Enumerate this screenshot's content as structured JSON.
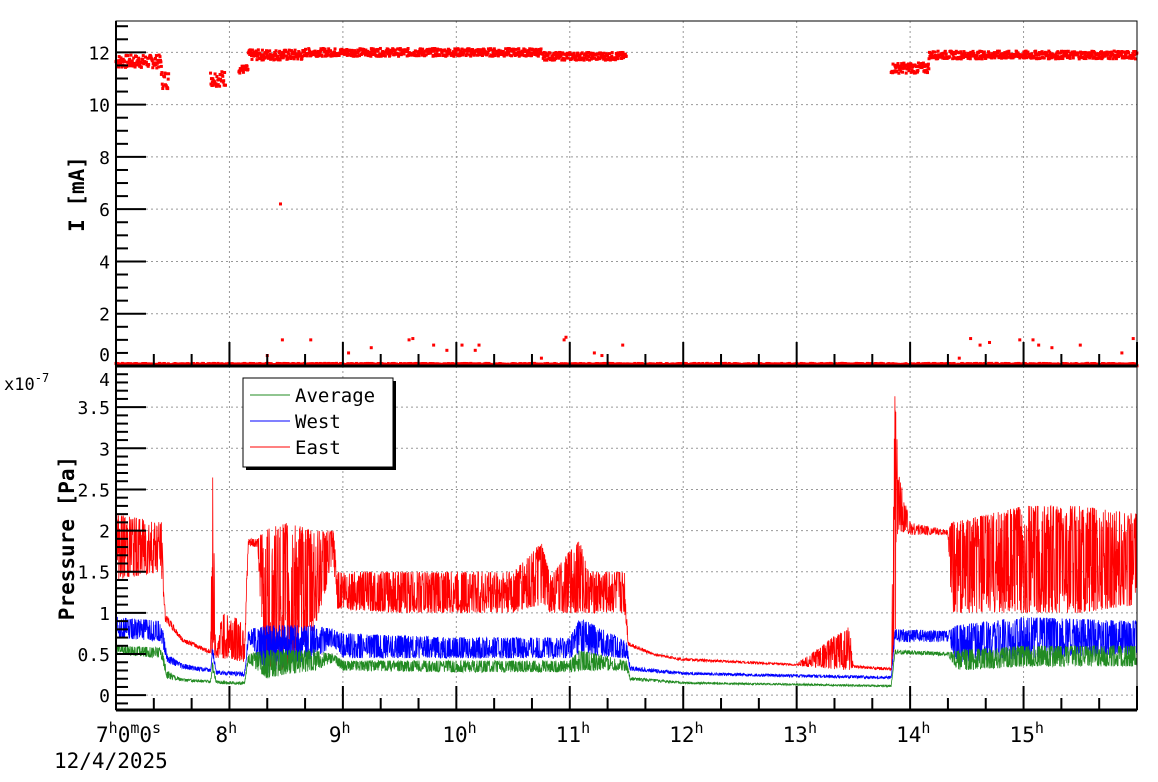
{
  "chart_data": [
    {
      "type": "scatter",
      "ylabel": "I [mA]",
      "ylim": [
        0,
        13.2
      ],
      "xlim": [
        "07:00",
        "16:00"
      ],
      "yticks": [
        "0",
        "2",
        "4",
        "6",
        "8",
        "10",
        "12"
      ],
      "grid": true,
      "color": "#ff0000",
      "segments": [
        {
          "from": "07:00",
          "to": "07:24",
          "lo": 11.4,
          "hi": 11.9
        },
        {
          "from": "07:24",
          "to": "07:28",
          "lo": 10.6,
          "hi": 11.3
        },
        {
          "from": "07:50",
          "to": "07:58",
          "lo": 10.7,
          "hi": 11.3
        },
        {
          "from": "08:05",
          "to": "08:10",
          "lo": 11.2,
          "hi": 11.5
        },
        {
          "from": "08:10",
          "to": "08:40",
          "lo": 11.7,
          "hi": 12.1
        },
        {
          "from": "08:40",
          "to": "10:45",
          "lo": 11.85,
          "hi": 12.15
        },
        {
          "from": "10:45",
          "to": "11:30",
          "lo": 11.7,
          "hi": 12.0
        },
        {
          "from": "13:50",
          "to": "14:10",
          "lo": 11.2,
          "hi": 11.6
        },
        {
          "from": "14:10",
          "to": "16:00",
          "lo": 11.75,
          "hi": 12.05
        },
        {
          "from": "07:00",
          "to": "16:00",
          "lo": 0.0,
          "hi": 0.1
        }
      ],
      "outliers": [
        [
          "08:27",
          6.2
        ],
        [
          "08:28",
          1.0
        ],
        [
          "08:20",
          0.4
        ],
        [
          "08:43",
          1.0
        ],
        [
          "09:03",
          0.5
        ],
        [
          "09:15",
          0.7
        ],
        [
          "09:35",
          1.0
        ],
        [
          "09:37",
          1.05
        ],
        [
          "09:48",
          0.8
        ],
        [
          "09:55",
          0.6
        ],
        [
          "10:03",
          0.8
        ],
        [
          "10:10",
          0.6
        ],
        [
          "10:12",
          0.8
        ],
        [
          "10:45",
          0.3
        ],
        [
          "10:57",
          1.0
        ],
        [
          "10:58",
          1.1
        ],
        [
          "11:13",
          0.5
        ],
        [
          "11:17",
          0.4
        ],
        [
          "11:28",
          0.8
        ],
        [
          "14:32",
          1.05
        ],
        [
          "14:37",
          0.8
        ],
        [
          "14:42",
          0.9
        ],
        [
          "14:58",
          1.0
        ],
        [
          "15:05",
          1.0
        ],
        [
          "15:08",
          0.8
        ],
        [
          "15:15",
          0.7
        ],
        [
          "15:30",
          0.8
        ],
        [
          "15:52",
          0.5
        ],
        [
          "15:58",
          1.05
        ],
        [
          "14:26",
          0.3
        ]
      ]
    },
    {
      "type": "line",
      "ylabel": "Pressure [Pa]",
      "yscale_label": "x10",
      "yscale_exp": "-7",
      "ylim": [
        -0.18,
        4.0
      ],
      "yticks": [
        "0",
        "0.5",
        "1",
        "1.5",
        "2",
        "2.5",
        "3",
        "3.5",
        "4"
      ],
      "xlim": [
        "07:00",
        "16:00"
      ],
      "xticks": [
        "7",
        "8",
        "9",
        "10",
        "11",
        "12",
        "13",
        "14",
        "15"
      ],
      "xtick_sup": "h",
      "first_tick": {
        "h": "7",
        "m": "0",
        "s": "0"
      },
      "date": "12/4/2025",
      "grid": true,
      "legend": "top-left",
      "series": [
        {
          "name": "Average",
          "color": "#228b22",
          "points": [
            [
              "07:00",
              0.5,
              0.6
            ],
            [
              "07:24",
              0.45,
              0.58
            ],
            [
              "07:27",
              0.2,
              0.3
            ],
            [
              "07:35",
              0.17,
              0.2
            ],
            [
              "07:50",
              0.15,
              0.18
            ],
            [
              "07:51",
              0.3,
              0.4
            ],
            [
              "07:53",
              0.14,
              0.18
            ],
            [
              "08:08",
              0.13,
              0.16
            ],
            [
              "08:10",
              0.4,
              0.5
            ],
            [
              "08:20",
              0.2,
              0.55
            ],
            [
              "08:30",
              0.25,
              0.55
            ],
            [
              "08:45",
              0.3,
              0.55
            ],
            [
              "08:55",
              0.4,
              0.5
            ],
            [
              "09:00",
              0.3,
              0.42
            ],
            [
              "10:00",
              0.28,
              0.42
            ],
            [
              "11:00",
              0.28,
              0.42
            ],
            [
              "11:05",
              0.3,
              0.55
            ],
            [
              "11:30",
              0.3,
              0.42
            ],
            [
              "11:32",
              0.18,
              0.22
            ],
            [
              "12:00",
              0.14,
              0.16
            ],
            [
              "13:00",
              0.12,
              0.14
            ],
            [
              "13:50",
              0.1,
              0.12
            ],
            [
              "13:52",
              0.5,
              0.55
            ],
            [
              "14:20",
              0.48,
              0.52
            ],
            [
              "14:25",
              0.3,
              0.55
            ],
            [
              "15:00",
              0.35,
              0.6
            ],
            [
              "16:00",
              0.35,
              0.6
            ]
          ]
        },
        {
          "name": "West",
          "color": "#0000ff",
          "points": [
            [
              "07:00",
              0.7,
              0.95
            ],
            [
              "07:24",
              0.65,
              0.9
            ],
            [
              "07:27",
              0.4,
              0.5
            ],
            [
              "07:35",
              0.32,
              0.38
            ],
            [
              "07:50",
              0.28,
              0.32
            ],
            [
              "07:51",
              0.5,
              0.6
            ],
            [
              "07:53",
              0.25,
              0.3
            ],
            [
              "08:08",
              0.23,
              0.28
            ],
            [
              "08:10",
              0.65,
              0.8
            ],
            [
              "08:20",
              0.25,
              0.85
            ],
            [
              "08:30",
              0.35,
              0.85
            ],
            [
              "08:45",
              0.45,
              0.85
            ],
            [
              "08:55",
              0.6,
              0.8
            ],
            [
              "09:00",
              0.45,
              0.75
            ],
            [
              "10:00",
              0.45,
              0.7
            ],
            [
              "11:00",
              0.45,
              0.7
            ],
            [
              "11:05",
              0.5,
              0.95
            ],
            [
              "11:30",
              0.45,
              0.65
            ],
            [
              "11:32",
              0.3,
              0.35
            ],
            [
              "12:00",
              0.25,
              0.28
            ],
            [
              "13:00",
              0.22,
              0.25
            ],
            [
              "13:50",
              0.2,
              0.23
            ],
            [
              "13:52",
              0.65,
              0.8
            ],
            [
              "14:20",
              0.65,
              0.78
            ],
            [
              "14:25",
              0.4,
              0.85
            ],
            [
              "15:00",
              0.45,
              0.95
            ],
            [
              "16:00",
              0.5,
              0.9
            ]
          ]
        },
        {
          "name": "East",
          "color": "#ff0000",
          "points": [
            [
              "07:00",
              1.4,
              2.2
            ],
            [
              "07:24",
              1.5,
              2.1
            ],
            [
              "07:26",
              0.9,
              1.0
            ],
            [
              "07:35",
              0.65,
              0.7
            ],
            [
              "07:50",
              0.5,
              0.55
            ],
            [
              "07:51",
              0.5,
              2.85
            ],
            [
              "07:53",
              0.45,
              0.5
            ],
            [
              "07:56",
              0.45,
              1.0
            ],
            [
              "08:08",
              0.4,
              0.9
            ],
            [
              "08:10",
              1.8,
              1.9
            ],
            [
              "08:15",
              1.8,
              1.9
            ],
            [
              "08:18",
              0.3,
              2.0
            ],
            [
              "08:30",
              0.3,
              2.1
            ],
            [
              "08:45",
              0.8,
              2.0
            ],
            [
              "08:55",
              1.6,
              2.0
            ],
            [
              "08:57",
              1.05,
              1.5
            ],
            [
              "09:30",
              1.0,
              1.5
            ],
            [
              "10:30",
              1.0,
              1.5
            ],
            [
              "10:45",
              1.1,
              1.85
            ],
            [
              "10:50",
              1.0,
              1.45
            ],
            [
              "11:05",
              1.0,
              1.9
            ],
            [
              "11:10",
              1.0,
              1.5
            ],
            [
              "11:29",
              1.0,
              1.5
            ],
            [
              "11:31",
              0.6,
              0.65
            ],
            [
              "11:45",
              0.48,
              0.5
            ],
            [
              "12:00",
              0.42,
              0.45
            ],
            [
              "13:00",
              0.36,
              0.38
            ],
            [
              "13:28",
              0.3,
              0.85
            ],
            [
              "13:30",
              0.33,
              0.36
            ],
            [
              "13:50",
              0.3,
              0.33
            ],
            [
              "13:52",
              0.3,
              3.75
            ],
            [
              "13:54",
              2.0,
              2.7
            ],
            [
              "14:00",
              1.95,
              2.1
            ],
            [
              "14:20",
              1.95,
              2.0
            ],
            [
              "14:22",
              1.0,
              2.1
            ],
            [
              "15:00",
              1.0,
              2.3
            ],
            [
              "15:30",
              1.0,
              2.3
            ],
            [
              "16:00",
              1.1,
              2.2
            ]
          ]
        }
      ]
    }
  ]
}
